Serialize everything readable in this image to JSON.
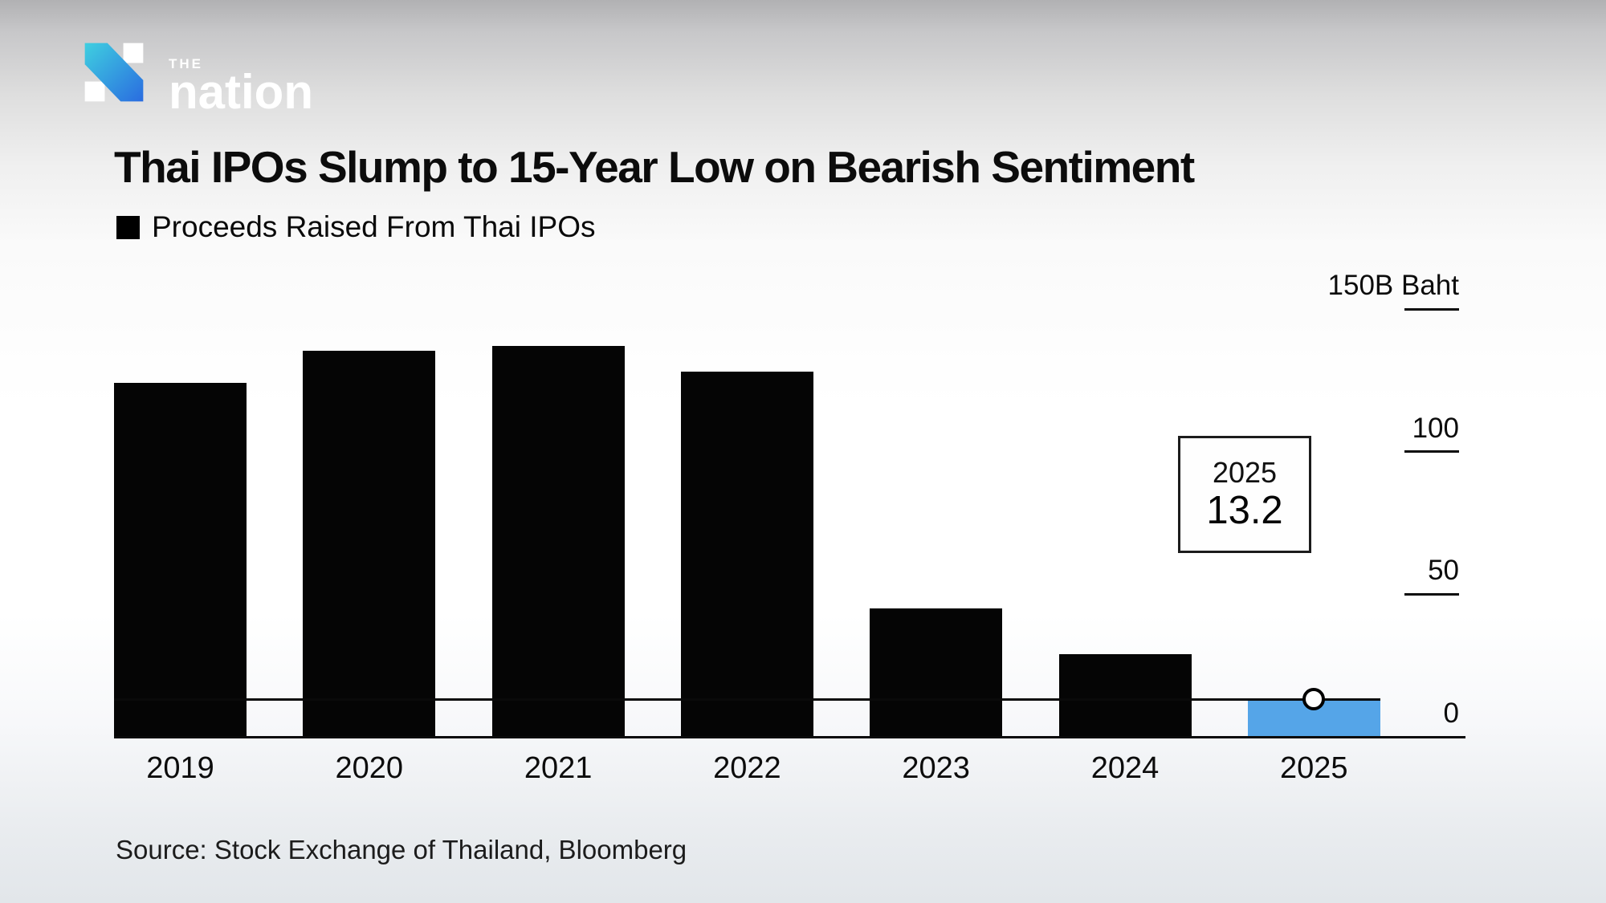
{
  "brand": {
    "the": "THE",
    "name": "nation",
    "icon": "nation-n-logo",
    "colors": {
      "cyan": "#3fcfe0",
      "blue": "#2a6ce0",
      "text": "#ffffff"
    }
  },
  "header": {
    "title": "Thai IPOs Slump to 15-Year Low on Bearish Sentiment"
  },
  "legend": {
    "label": "Proceeds Raised From Thai IPOs",
    "swatch_color": "#000000"
  },
  "chart_data": {
    "type": "bar",
    "title": "Thai IPOs Slump to 15-Year Low on Bearish Sentiment",
    "series_name": "Proceeds Raised From Thai IPOs",
    "categories": [
      "2019",
      "2020",
      "2021",
      "2022",
      "2023",
      "2024",
      "2025"
    ],
    "values": [
      124,
      135.5,
      137,
      128,
      45,
      29,
      13.2
    ],
    "unit": "B Baht",
    "bar_color": "#050505",
    "axis": {
      "side": "right",
      "ylim": [
        0,
        150
      ],
      "grid": false,
      "ticks": [
        {
          "value": 150,
          "label": "150B Baht"
        },
        {
          "value": 100,
          "label": "100"
        },
        {
          "value": 50,
          "label": "50"
        },
        {
          "value": 0,
          "label": "0"
        }
      ]
    },
    "highlight": {
      "category": "2025",
      "value": 13.2,
      "color": "#55a5e8",
      "marker": "open-circle",
      "reference_line_value": 13.2
    },
    "annotation": {
      "year": "2025",
      "value": "13.2"
    }
  },
  "source": {
    "label": "Source: Stock Exchange of Thailand, Bloomberg"
  }
}
